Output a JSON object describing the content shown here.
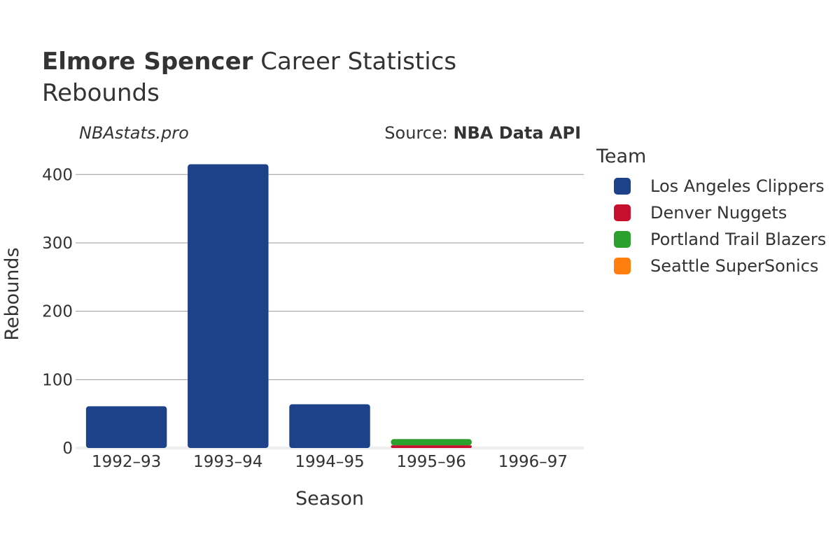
{
  "header": {
    "player_name": "Elmore Spencer",
    "title_suffix": "Career Statistics",
    "subtitle": "Rebounds"
  },
  "watermark": "NBAstats.pro",
  "source": {
    "label": "Source:",
    "value": "NBA Data API"
  },
  "legend": {
    "title": "Team",
    "items": [
      {
        "label": "Los Angeles Clippers",
        "color": "#1d428a"
      },
      {
        "label": "Denver Nuggets",
        "color": "#c8102e"
      },
      {
        "label": "Portland Trail Blazers",
        "color": "#2ca02c"
      },
      {
        "label": "Seattle SuperSonics",
        "color": "#ff7f0e"
      }
    ]
  },
  "chart_data": {
    "type": "bar",
    "stacked": true,
    "categories": [
      "1992–93",
      "1993–94",
      "1994–95",
      "1995–96",
      "1996–97"
    ],
    "series": [
      {
        "name": "Los Angeles Clippers",
        "color": "#1d428a",
        "values": [
          61,
          415,
          64,
          0,
          0
        ]
      },
      {
        "name": "Denver Nuggets",
        "color": "#c8102e",
        "values": [
          0,
          0,
          0,
          4,
          0
        ]
      },
      {
        "name": "Portland Trail Blazers",
        "color": "#2ca02c",
        "values": [
          0,
          0,
          0,
          9,
          0
        ]
      },
      {
        "name": "Seattle SuperSonics",
        "color": "#ff7f0e",
        "values": [
          0,
          0,
          0,
          0,
          0
        ]
      }
    ],
    "xlabel": "Season",
    "ylabel": "Rebounds",
    "ylim": [
      0,
      430
    ],
    "yticks": [
      0,
      100,
      200,
      300,
      400
    ],
    "grid": true,
    "legend_position": "right"
  }
}
